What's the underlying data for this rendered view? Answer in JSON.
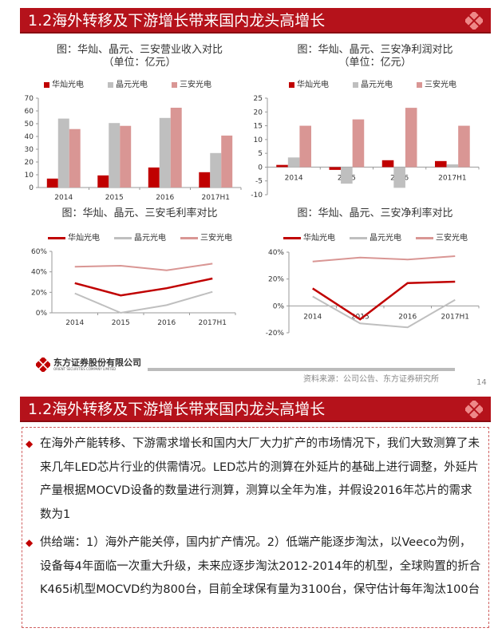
{
  "slide1": {
    "header": "1.2海外转移及下游增长带来国内龙头高增长",
    "source": "资料来源：公司公告、东方证券研究所",
    "page_number": "14",
    "logo_text": "东方证券股份有限公司",
    "logo_subtext": "ORIENT SECURITIES COMPANY LIMITED"
  },
  "slide2": {
    "header": "1.2海外转移及下游增长带来国内龙头高增长",
    "bullets": [
      "在海外产能转移、下游需求增长和国内大厂大力扩产的市场情况下，我们大致测算了未来几年LED芯片行业的供需情况。LED芯片的测算在外延片的基础上进行调整，外延片产量根据MOCVD设备的数量进行测算，测算以全年为准，并假设2016年芯片的需求数为1",
      "供给端：1）海外产能关停，国内扩产情况。2）低端产能逐步淘汰，以Veeco为例，设备每4年面临一次重大升级，未来应逐步淘汰2012-2014年的机型，全球购置的折合K465i机型MOCVD约为800台，目前全球保有量为3100台，保守估计每年淘汰100台"
    ]
  },
  "colors": {
    "brand": "#b5121b",
    "huacan": "#c00000",
    "jingyuan": "#bfbfbf",
    "sanan": "#d99694"
  },
  "chart_data": [
    {
      "type": "bar",
      "title": "图：华灿、晶元、三安营业收入对比",
      "subtitle": "（单位：亿元）",
      "categories": [
        "2014",
        "2015",
        "2016",
        "2017H1"
      ],
      "series": [
        {
          "name": "华灿光电",
          "values": [
            7,
            9.5,
            15.7,
            12
          ]
        },
        {
          "name": "晶元光电",
          "values": [
            54,
            50.5,
            54.5,
            27
          ]
        },
        {
          "name": "三安光电",
          "values": [
            45.8,
            48.3,
            62.5,
            40.7
          ]
        }
      ],
      "ylim": [
        0,
        70
      ],
      "yticks": [
        "0",
        "10",
        "20",
        "30",
        "40",
        "50",
        "60",
        "70"
      ],
      "legend": "top"
    },
    {
      "type": "bar",
      "title": "图：华灿、晶元、三安净利润对比",
      "subtitle": "（单位：亿元）",
      "categories": [
        "2014",
        "2015",
        "2016",
        "2017H1"
      ],
      "series": [
        {
          "name": "华灿光电",
          "values": [
            0.8,
            -1,
            2.5,
            2.2
          ]
        },
        {
          "name": "晶元光电",
          "values": [
            3.5,
            -6,
            -7.5,
            1
          ]
        },
        {
          "name": "三安光电",
          "values": [
            15,
            17.3,
            21.5,
            15
          ]
        }
      ],
      "ylim": [
        -10,
        25
      ],
      "yticks": [
        "-10",
        "-5",
        "0",
        "5",
        "10",
        "15",
        "20",
        "25"
      ],
      "legend": "top"
    },
    {
      "type": "line",
      "title": "图：华灿、晶元、三安毛利率对比",
      "categories": [
        "2014",
        "2015",
        "2016",
        "2017H1"
      ],
      "series": [
        {
          "name": "华灿光电",
          "values": [
            29,
            17,
            24,
            33.5
          ]
        },
        {
          "name": "晶元光电",
          "values": [
            19,
            0,
            7.5,
            20.5
          ]
        },
        {
          "name": "三安光电",
          "values": [
            45,
            46,
            41.5,
            48
          ]
        }
      ],
      "ylim": [
        0,
        60
      ],
      "yticks": [
        "0%",
        "20%",
        "40%",
        "60%"
      ],
      "legend": "top"
    },
    {
      "type": "line",
      "title": "图：华灿、晶元、三安净利率对比",
      "categories": [
        "2014",
        "2015",
        "2016",
        "2017H1"
      ],
      "series": [
        {
          "name": "华灿光电",
          "values": [
            13,
            -10,
            17,
            18
          ]
        },
        {
          "name": "晶元光电",
          "values": [
            7,
            -13,
            -16,
            4.5
          ]
        },
        {
          "name": "三安光电",
          "values": [
            33,
            36,
            34.5,
            37
          ]
        }
      ],
      "ylim": [
        -20,
        40
      ],
      "yticks": [
        "-20%",
        "0%",
        "20%",
        "40%"
      ],
      "legend": "top"
    }
  ]
}
